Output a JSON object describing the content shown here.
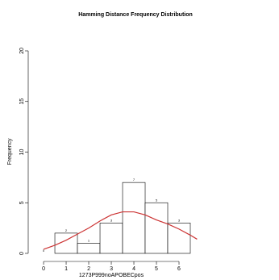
{
  "chart_data": {
    "type": "histogram",
    "title": "Hamming Distance Frequency Distribution",
    "x_label": "1273P999noAPOBECpos",
    "y_label": "Frequency",
    "bins": [
      -0.5,
      0.5,
      1.5,
      2.5,
      3.5,
      4.5,
      5.5,
      6.5
    ],
    "values": [
      0,
      2,
      1,
      3,
      7,
      5,
      3
    ],
    "value_labels": [
      "0",
      "2",
      "1",
      "3",
      "7",
      "5",
      "3"
    ],
    "color": "#ffffff",
    "curve": {
      "color": "#cc3333",
      "x": [
        0,
        0.5,
        1,
        1.5,
        2,
        2.5,
        3,
        3.5,
        4,
        4.5,
        5,
        5.5,
        6,
        6.5,
        6.8
      ],
      "values": [
        0.4,
        0.8,
        1.3,
        1.9,
        2.5,
        3.2,
        3.8,
        4.1,
        4.1,
        3.8,
        3.3,
        2.9,
        2.4,
        1.8,
        1.4
      ]
    },
    "xlim": [
      -0.68,
      7
    ],
    "ylim": [
      0,
      20
    ],
    "xticks": [
      0,
      1,
      2,
      3,
      4,
      5,
      6
    ],
    "yticks": [
      0,
      5,
      10,
      15,
      20
    ]
  }
}
